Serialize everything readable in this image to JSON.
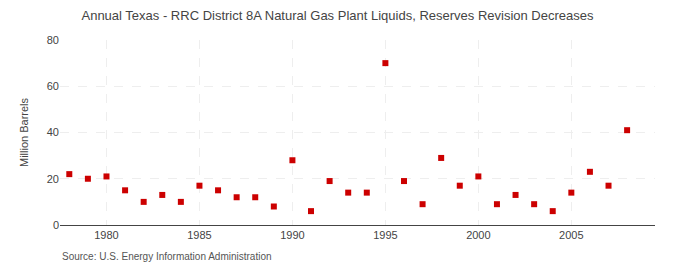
{
  "chart_data": {
    "type": "scatter",
    "title": "Annual Texas - RRC District 8A Natural Gas Plant Liquids, Reserves Revision Decreases",
    "ylabel": "Million Barrels",
    "annotation": "Source: U.S. Energy Information Administration",
    "x": [
      1978,
      1979,
      1980,
      1981,
      1982,
      1983,
      1984,
      1985,
      1986,
      1987,
      1988,
      1989,
      1990,
      1991,
      1992,
      1993,
      1994,
      1995,
      1996,
      1997,
      1998,
      1999,
      2000,
      2001,
      2002,
      2003,
      2004,
      2005,
      2006,
      2007,
      2008
    ],
    "values": [
      22,
      20,
      21,
      15,
      10,
      13,
      10,
      17,
      15,
      12,
      12,
      8,
      28,
      6,
      19,
      14,
      14,
      70,
      19,
      9,
      29,
      17,
      21,
      9,
      13,
      9,
      6,
      14,
      23,
      17,
      41
    ],
    "color": "#cc0000",
    "marker": "square",
    "xlim": [
      1977.5,
      2009.5
    ],
    "xticks": [
      1980,
      1985,
      1990,
      1995,
      2000,
      2005
    ],
    "ylim": [
      0,
      80
    ],
    "yticks": [
      0,
      20,
      40,
      60,
      80
    ],
    "grid": true
  }
}
